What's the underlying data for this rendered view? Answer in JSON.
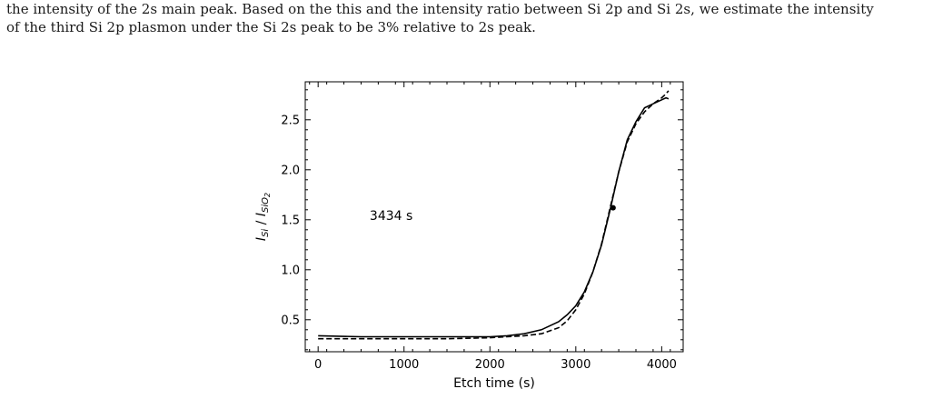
{
  "paper": {
    "lines": [
      "the intensity of the 2s main peak. Based on the this and the intensity ratio between Si 2p and Si 2s, we estimate the intensity",
      "of the third Si 2p plasmon under the Si 2s peak to be 3% relative to 2s peak."
    ]
  },
  "chart_data": {
    "type": "line",
    "xlabel": "Etch time (s)",
    "ylabel": "I_Si / I_SiO2",
    "ylabel_parts": {
      "base1": "I",
      "sub1": "Si",
      "sep": " / ",
      "base2": "I",
      "sub2": "SiO",
      "sub2_sub": "2"
    },
    "xlim": [
      -150,
      4250
    ],
    "ylim": [
      0.18,
      2.88
    ],
    "x_ticks": [
      0,
      1000,
      2000,
      3000,
      4000
    ],
    "x_tick_labels": [
      "0",
      "1000",
      "2000",
      "3000",
      "4000"
    ],
    "y_ticks": [
      0.5,
      1.0,
      1.5,
      2.0,
      2.5
    ],
    "y_tick_labels": [
      "0.5",
      "1.0",
      "1.5",
      "2.0",
      "2.5"
    ],
    "grid": false,
    "annotation": {
      "text": "3434 s",
      "x": 600,
      "y": 1.5
    },
    "marker": {
      "x": 3434,
      "y": 1.62
    },
    "series": [
      {
        "style": "solid",
        "x": [
          0,
          500,
          1000,
          1500,
          2000,
          2200,
          2400,
          2600,
          2800,
          2900,
          3000,
          3100,
          3200,
          3300,
          3400,
          3500,
          3600,
          3700,
          3800,
          3900,
          4000,
          4050,
          4080
        ],
        "y": [
          0.34,
          0.33,
          0.33,
          0.33,
          0.33,
          0.34,
          0.36,
          0.4,
          0.48,
          0.55,
          0.64,
          0.78,
          0.98,
          1.25,
          1.6,
          1.98,
          2.3,
          2.48,
          2.62,
          2.66,
          2.7,
          2.72,
          2.71
        ]
      },
      {
        "style": "dashed",
        "x": [
          0,
          500,
          1000,
          1500,
          2000,
          2200,
          2400,
          2600,
          2800,
          2900,
          3000,
          3100,
          3200,
          3300,
          3400,
          3500,
          3600,
          3700,
          3800,
          3900,
          4000,
          4050,
          4080
        ],
        "y": [
          0.31,
          0.31,
          0.31,
          0.31,
          0.32,
          0.33,
          0.34,
          0.36,
          0.42,
          0.49,
          0.6,
          0.76,
          0.98,
          1.26,
          1.62,
          1.98,
          2.28,
          2.46,
          2.58,
          2.66,
          2.72,
          2.76,
          2.79
        ]
      }
    ]
  }
}
